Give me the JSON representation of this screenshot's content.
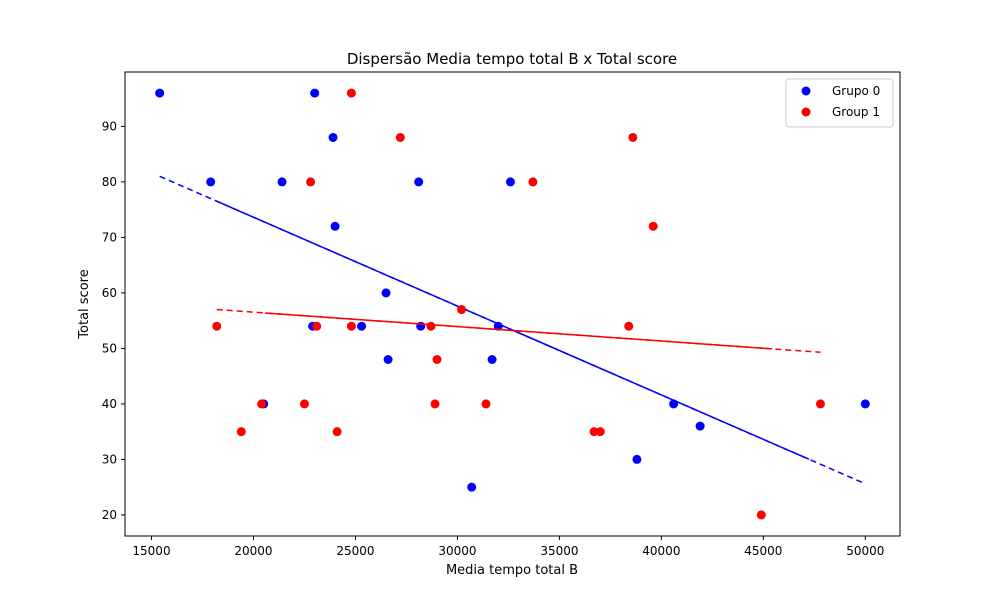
{
  "chart_data": {
    "type": "scatter",
    "title": "Dispersão Media tempo total B x Total score",
    "xlabel": "Media tempo total B",
    "ylabel": "Total score",
    "xlim": [
      13700,
      51700
    ],
    "ylim": [
      16.2,
      99.8
    ],
    "xticks": [
      15000,
      20000,
      25000,
      30000,
      35000,
      40000,
      45000,
      50000
    ],
    "yticks": [
      20,
      30,
      40,
      50,
      60,
      70,
      80,
      90
    ],
    "grid": false,
    "legend_position": "top-right",
    "series": [
      {
        "name": "Grupo 0",
        "color": "#0000ff",
        "points": [
          [
            15400,
            96
          ],
          [
            17900,
            80
          ],
          [
            21400,
            80
          ],
          [
            23000,
            96
          ],
          [
            23900,
            88
          ],
          [
            24000,
            72
          ],
          [
            22900,
            54
          ],
          [
            25300,
            54
          ],
          [
            26500,
            60
          ],
          [
            26600,
            48
          ],
          [
            28100,
            80
          ],
          [
            28200,
            54
          ],
          [
            20500,
            40
          ],
          [
            30700,
            25
          ],
          [
            31700,
            48
          ],
          [
            32000,
            54
          ],
          [
            32600,
            80
          ],
          [
            38800,
            30
          ],
          [
            40600,
            40
          ],
          [
            41900,
            36
          ],
          [
            50000,
            40
          ]
        ],
        "trend": {
          "x": [
            15400,
            50000
          ],
          "y": [
            81.0,
            25.6
          ]
        }
      },
      {
        "name": "Group 1",
        "color": "#ff0000",
        "points": [
          [
            18200,
            54
          ],
          [
            19400,
            35
          ],
          [
            20400,
            40
          ],
          [
            22500,
            40
          ],
          [
            22800,
            80
          ],
          [
            23100,
            54
          ],
          [
            24100,
            35
          ],
          [
            24800,
            54
          ],
          [
            24800,
            96
          ],
          [
            27200,
            88
          ],
          [
            28700,
            54
          ],
          [
            28900,
            40
          ],
          [
            29000,
            48
          ],
          [
            30200,
            57
          ],
          [
            31400,
            40
          ],
          [
            33700,
            80
          ],
          [
            36700,
            35
          ],
          [
            37000,
            35
          ],
          [
            38400,
            54
          ],
          [
            38600,
            88
          ],
          [
            39600,
            72
          ],
          [
            44900,
            20
          ],
          [
            47800,
            40
          ]
        ],
        "trend": {
          "x": [
            18200,
            47800
          ],
          "y": [
            57.0,
            49.3
          ]
        }
      }
    ]
  }
}
